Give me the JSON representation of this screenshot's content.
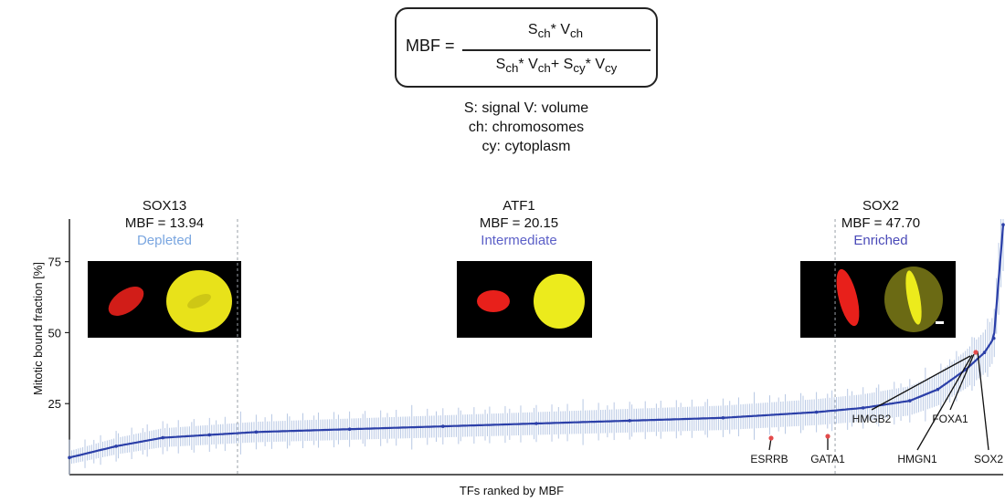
{
  "formula": {
    "lhs": "MBF",
    "eq": "=",
    "numerator": "S_ch * V_ch",
    "denominator": "S_ch * V_ch + S_cy * V_cy"
  },
  "legend_text": [
    "S: signal   V: volume",
    "ch: chromosomes",
    "cy: cytoplasm"
  ],
  "panels": [
    {
      "name": "SOX13",
      "mbf": "MBF = 13.94",
      "category": "Depleted",
      "color": "#7aa6e0"
    },
    {
      "name": "ATF1",
      "mbf": "MBF = 20.15",
      "category": "Intermediate",
      "color": "#5b5fc7"
    },
    {
      "name": "SOX2",
      "mbf": "MBF = 47.70",
      "category": "Enriched",
      "color": "#4a4ab8"
    }
  ],
  "chart_data": {
    "type": "scatter",
    "title": "",
    "xlabel": "TFs ranked by MBF",
    "ylabel": "Mitotic bound fraction [%]",
    "ylim": [
      0,
      90
    ],
    "yticks": [
      25,
      50,
      75
    ],
    "x": [
      0,
      5,
      10,
      15,
      20,
      30,
      40,
      50,
      60,
      70,
      80,
      85,
      90,
      93,
      96,
      98,
      99,
      100
    ],
    "y": [
      6,
      10,
      13,
      14,
      15,
      16,
      17,
      18,
      19,
      20,
      22,
      23.5,
      26,
      30,
      37,
      43,
      48,
      88
    ],
    "x_range": [
      0,
      100
    ],
    "line_color": "#2b3fa8",
    "error_color": "#b8c8e4",
    "grid": false,
    "vlines_x": [
      18,
      82
    ],
    "gene_labels": [
      "ESRRB",
      "GATA1",
      "HMGB2",
      "HMGN1",
      "FOXA1",
      "SOX2"
    ]
  }
}
